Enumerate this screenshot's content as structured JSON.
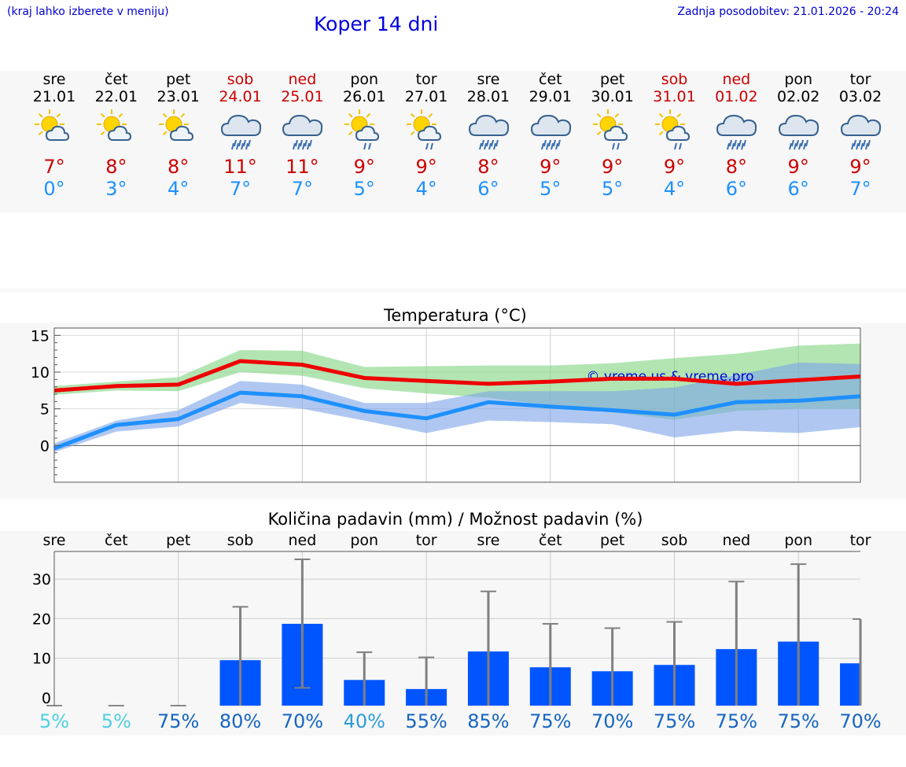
{
  "header": {
    "hint": "(kraj lahko izberete v meniju)",
    "title": "Koper 14 dni",
    "updated": "Zadnja posodobitev: 21.01.2026 - 20:24"
  },
  "days": [
    {
      "name": "sre",
      "date": "21.01",
      "icon": "sun-cloud-icon",
      "max": "7°",
      "min": "0°",
      "weekend": false
    },
    {
      "name": "čet",
      "date": "22.01",
      "icon": "sun-cloud-icon",
      "max": "8°",
      "min": "3°",
      "weekend": false
    },
    {
      "name": "pet",
      "date": "23.01",
      "icon": "sun-cloud-icon",
      "max": "8°",
      "min": "4°",
      "weekend": false
    },
    {
      "name": "sob",
      "date": "24.01",
      "icon": "cloud-rain-icon",
      "max": "11°",
      "min": "7°",
      "weekend": true
    },
    {
      "name": "ned",
      "date": "25.01",
      "icon": "cloud-rain-icon",
      "max": "11°",
      "min": "7°",
      "weekend": true
    },
    {
      "name": "pon",
      "date": "26.01",
      "icon": "sun-cloud-rain-icon",
      "max": "9°",
      "min": "5°",
      "weekend": false
    },
    {
      "name": "tor",
      "date": "27.01",
      "icon": "sun-cloud-rain-icon",
      "max": "9°",
      "min": "4°",
      "weekend": false
    },
    {
      "name": "sre",
      "date": "28.01",
      "icon": "cloud-rain-icon",
      "max": "8°",
      "min": "6°",
      "weekend": false
    },
    {
      "name": "čet",
      "date": "29.01",
      "icon": "cloud-rain-icon",
      "max": "9°",
      "min": "5°",
      "weekend": false
    },
    {
      "name": "pet",
      "date": "30.01",
      "icon": "sun-cloud-rain-icon",
      "max": "9°",
      "min": "5°",
      "weekend": false
    },
    {
      "name": "sob",
      "date": "31.01",
      "icon": "sun-cloud-rain-icon",
      "max": "9°",
      "min": "4°",
      "weekend": true
    },
    {
      "name": "ned",
      "date": "01.02",
      "icon": "cloud-rain-icon",
      "max": "8°",
      "min": "6°",
      "weekend": true
    },
    {
      "name": "pon",
      "date": "02.02",
      "icon": "cloud-rain-icon",
      "max": "9°",
      "min": "6°",
      "weekend": false
    },
    {
      "name": "tor",
      "date": "03.02",
      "icon": "cloud-rain-icon",
      "max": "9°",
      "min": "7°",
      "weekend": false
    }
  ],
  "chart_data": [
    {
      "type": "line",
      "title": "Temperatura (°C)",
      "ylim": [
        -5,
        16
      ],
      "yticks": [
        "15",
        "10",
        "5",
        "0"
      ],
      "watermark": "© vreme.us & vreme.pro",
      "series": [
        {
          "name": "max",
          "color": "#ee0000",
          "values": [
            7.5,
            8.1,
            8.3,
            11.5,
            11.0,
            9.2,
            8.8,
            8.4,
            8.7,
            9.1,
            9.1,
            8.4,
            8.9,
            9.4
          ]
        },
        {
          "name": "min",
          "color": "#1e90ff",
          "values": [
            -0.4,
            2.8,
            3.6,
            7.2,
            6.7,
            4.7,
            3.7,
            5.9,
            5.3,
            4.8,
            4.2,
            5.9,
            6.1,
            6.7
          ]
        }
      ],
      "bands": [
        {
          "name": "max-range",
          "color": "#7fd37f",
          "low": [
            6.9,
            7.5,
            7.4,
            10.0,
            9.5,
            7.8,
            7.1,
            6.5,
            5.5,
            4.5,
            3.5,
            4.7,
            5.0,
            5.0
          ],
          "high": [
            8.1,
            8.7,
            9.3,
            13.0,
            12.9,
            10.7,
            10.8,
            10.9,
            10.9,
            11.2,
            11.9,
            12.5,
            13.6,
            13.9
          ]
        },
        {
          "name": "min-range",
          "color": "#7ba4e8",
          "low": [
            -0.9,
            1.9,
            2.6,
            5.8,
            5.0,
            3.4,
            1.7,
            3.4,
            3.2,
            2.9,
            1.1,
            2.0,
            1.7,
            2.5
          ],
          "high": [
            0.3,
            3.4,
            4.8,
            8.8,
            8.3,
            5.8,
            5.8,
            7.4,
            7.4,
            7.4,
            7.9,
            9.6,
            11.3,
            11.1
          ]
        }
      ]
    },
    {
      "type": "bar",
      "title": "Količina padavin (mm) / Možnost padavin (%)",
      "ylim": [
        -2,
        37
      ],
      "yticks": [
        "30",
        "20",
        "10",
        "0"
      ],
      "categories": [
        "sre",
        "čet",
        "pet",
        "sob",
        "ned",
        "pon",
        "tor",
        "sre",
        "čet",
        "pet",
        "sob",
        "ned",
        "pon",
        "tor"
      ],
      "values": [
        0,
        0,
        0,
        9.5,
        18.7,
        4.5,
        2.2,
        11.7,
        7.7,
        6.7,
        8.3,
        12.3,
        14.2,
        8.7
      ],
      "err_low": [
        0,
        0,
        0,
        0,
        2.5,
        0,
        0,
        0,
        0,
        0,
        0,
        0,
        0,
        0
      ],
      "err_high": [
        0,
        0,
        0,
        23,
        35,
        11.5,
        10.2,
        26.9,
        18.7,
        17.6,
        19.2,
        29.4,
        33.8,
        19.9
      ],
      "probability": [
        "5%",
        "5%",
        "75%",
        "80%",
        "70%",
        "40%",
        "55%",
        "85%",
        "75%",
        "70%",
        "75%",
        "75%",
        "75%",
        "70%"
      ],
      "prob_colors": [
        "#4dd0e1",
        "#4dd0e1",
        "#1565c0",
        "#1565c0",
        "#1565c0",
        "#2e9cd6",
        "#1565c0",
        "#1565c0",
        "#1565c0",
        "#1565c0",
        "#1565c0",
        "#1565c0",
        "#1565c0",
        "#1565c0"
      ]
    }
  ]
}
